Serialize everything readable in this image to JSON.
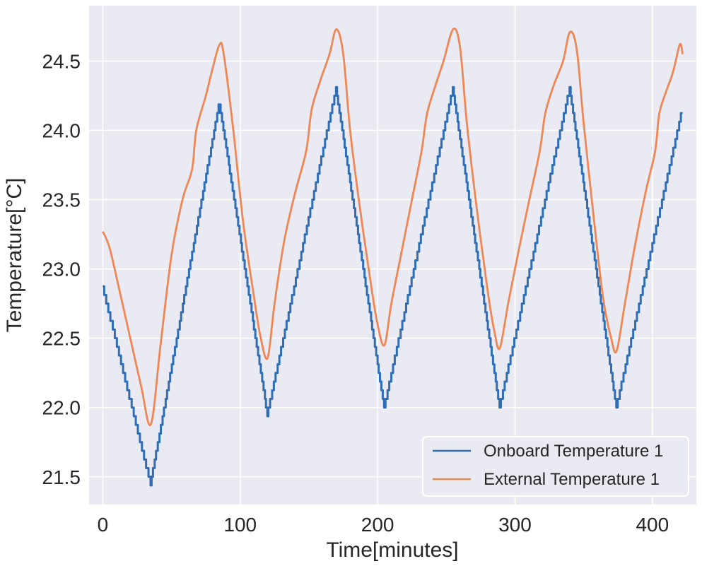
{
  "chart_data": {
    "type": "line",
    "title": "",
    "xlabel": "Time[minutes]",
    "ylabel": "Temperature[°C]",
    "xlim": [
      -10,
      432
    ],
    "ylim": [
      21.3,
      24.9
    ],
    "xticks": [
      0,
      100,
      200,
      300,
      400
    ],
    "yticks": [
      21.5,
      22.0,
      22.5,
      23.0,
      23.5,
      24.0,
      24.5
    ],
    "xtick_labels": [
      "0",
      "100",
      "200",
      "300",
      "400"
    ],
    "ytick_labels": [
      "21.5",
      "22.0",
      "22.5",
      "23.0",
      "23.5",
      "24.0",
      "24.5"
    ],
    "grid": true,
    "legend_position": "bottom-right",
    "series": [
      {
        "name": "Onboard Temperature 1",
        "color": "#2f6eb5",
        "step": 0.0625,
        "x": [
          0,
          35,
          85,
          120,
          170,
          205,
          255,
          289,
          340,
          374,
          422
        ],
        "y": [
          22.88,
          21.45,
          24.2,
          21.95,
          24.3,
          22.0,
          24.3,
          22.0,
          24.3,
          22.0,
          24.15
        ]
      },
      {
        "name": "External Temperature 1",
        "color": "#ee8755",
        "step": 0,
        "x": [
          0,
          5,
          12,
          20,
          28,
          35,
          42,
          50,
          58,
          65,
          68,
          75,
          80,
          85,
          88,
          95,
          102,
          110,
          115,
          120,
          125,
          132,
          140,
          148,
          152,
          158,
          165,
          170,
          175,
          180,
          187,
          195,
          200,
          205,
          210,
          218,
          225,
          232,
          236,
          242,
          248,
          255,
          260,
          265,
          272,
          280,
          285,
          289,
          295,
          302,
          310,
          318,
          322,
          328,
          335,
          340,
          345,
          350,
          357,
          364,
          370,
          374,
          380,
          387,
          395,
          402,
          405,
          410,
          415,
          420,
          422
        ],
        "y": [
          23.27,
          23.15,
          22.85,
          22.5,
          22.15,
          21.88,
          22.45,
          23.1,
          23.5,
          23.72,
          24.0,
          24.25,
          24.45,
          24.62,
          24.55,
          24.0,
          23.35,
          22.8,
          22.5,
          22.36,
          22.75,
          23.2,
          23.55,
          23.85,
          24.15,
          24.35,
          24.55,
          24.73,
          24.55,
          24.0,
          23.45,
          22.9,
          22.6,
          22.45,
          22.75,
          23.15,
          23.5,
          23.85,
          24.12,
          24.32,
          24.5,
          24.73,
          24.6,
          24.05,
          23.45,
          22.85,
          22.55,
          22.43,
          22.75,
          23.1,
          23.48,
          23.85,
          24.12,
          24.32,
          24.5,
          24.71,
          24.58,
          24.05,
          23.4,
          22.8,
          22.5,
          22.41,
          22.75,
          23.15,
          23.55,
          23.85,
          24.12,
          24.28,
          24.42,
          24.62,
          24.55
        ]
      }
    ]
  }
}
